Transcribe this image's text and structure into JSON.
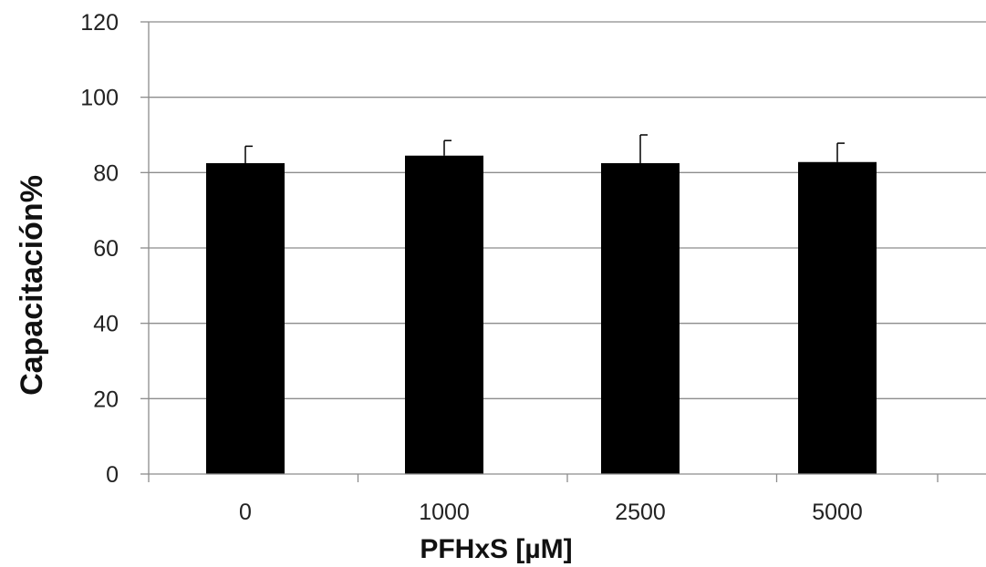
{
  "chart_data": {
    "type": "bar",
    "title": "",
    "xlabel": "PFHxS [µM]",
    "ylabel": "Capacitación%",
    "categories": [
      "0",
      "1000",
      "2500",
      "5000"
    ],
    "series": [
      {
        "values": [
          82.5,
          84.5,
          82.5,
          82.8
        ],
        "error": [
          4.5,
          4.0,
          7.5,
          5.0
        ],
        "color": "#000000"
      }
    ],
    "ylim": [
      0,
      120
    ],
    "yticks": [
      "0",
      "20",
      "40",
      "60",
      "80",
      "100",
      "120"
    ],
    "grid": true,
    "legend": "none"
  }
}
